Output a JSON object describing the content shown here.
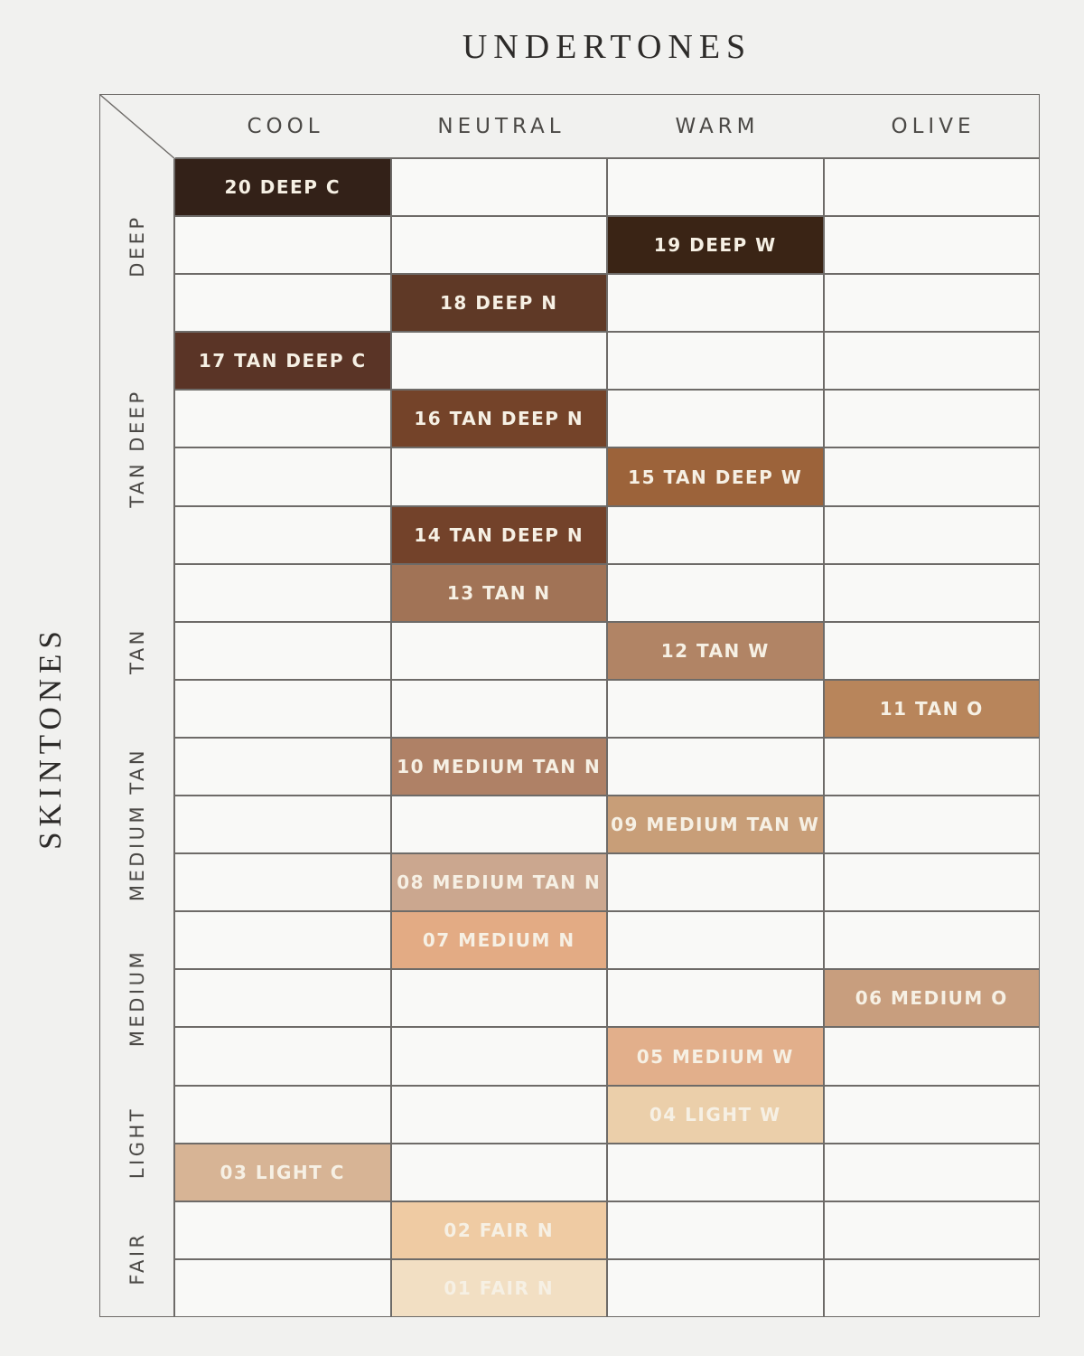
{
  "chart_data": {
    "type": "table",
    "title": "UNDERTONES",
    "row_axis_label": "SKINTONES",
    "columns": [
      "COOL",
      "NEUTRAL",
      "WARM",
      "OLIVE"
    ],
    "row_groups": [
      {
        "label": "DEEP",
        "rows": 3
      },
      {
        "label": "TAN DEEP",
        "rows": 4
      },
      {
        "label": "TAN",
        "rows": 3
      },
      {
        "label": "MEDIUM TAN",
        "rows": 3
      },
      {
        "label": "MEDIUM",
        "rows": 3
      },
      {
        "label": "LIGHT",
        "rows": 2
      },
      {
        "label": "FAIR",
        "rows": 2
      }
    ],
    "cells": [
      {
        "row": 1,
        "column": "COOL",
        "label": "20 DEEP C",
        "color": "#332118"
      },
      {
        "row": 2,
        "column": "WARM",
        "label": "19 DEEP W",
        "color": "#3A2415"
      },
      {
        "row": 3,
        "column": "NEUTRAL",
        "label": "18 DEEP N",
        "color": "#5F3926"
      },
      {
        "row": 4,
        "column": "COOL",
        "label": "17 TAN DEEP C",
        "color": "#5A3426"
      },
      {
        "row": 5,
        "column": "NEUTRAL",
        "label": "16 TAN DEEP N",
        "color": "#744329"
      },
      {
        "row": 6,
        "column": "WARM",
        "label": "15 TAN DEEP W",
        "color": "#9C633A"
      },
      {
        "row": 7,
        "column": "NEUTRAL",
        "label": "14 TAN DEEP N",
        "color": "#73422A"
      },
      {
        "row": 8,
        "column": "NEUTRAL",
        "label": "13 TAN N",
        "color": "#A17356"
      },
      {
        "row": 9,
        "column": "WARM",
        "label": "12 TAN W",
        "color": "#B18465"
      },
      {
        "row": 10,
        "column": "OLIVE",
        "label": "11 TAN O",
        "color": "#B8855B"
      },
      {
        "row": 11,
        "column": "NEUTRAL",
        "label": "10 MEDIUM TAN N",
        "color": "#AF8166"
      },
      {
        "row": 12,
        "column": "WARM",
        "label": "09 MEDIUM TAN W",
        "color": "#C89E78"
      },
      {
        "row": 13,
        "column": "NEUTRAL",
        "label": "08 MEDIUM TAN N",
        "color": "#CBA78F"
      },
      {
        "row": 14,
        "column": "NEUTRAL",
        "label": "07 MEDIUM N",
        "color": "#E3AB84"
      },
      {
        "row": 15,
        "column": "OLIVE",
        "label": "06 MEDIUM O",
        "color": "#C89E7E"
      },
      {
        "row": 16,
        "column": "WARM",
        "label": "05 MEDIUM W",
        "color": "#E2AF8B"
      },
      {
        "row": 17,
        "column": "WARM",
        "label": "04 LIGHT W",
        "color": "#EBCFAA"
      },
      {
        "row": 18,
        "column": "COOL",
        "label": "03 LIGHT C",
        "color": "#D7B495"
      },
      {
        "row": 19,
        "column": "NEUTRAL",
        "label": "02 FAIR N",
        "color": "#EFCBA3"
      },
      {
        "row": 20,
        "column": "NEUTRAL",
        "label": "01 FAIR N",
        "color": "#F2DFC3"
      }
    ],
    "colors": {
      "page_bg": "#F1F1EF",
      "grid_line": "#6e6b68",
      "empty_cell_bg": "#F9F9F7",
      "cell_text": "#F6F0E4",
      "heading_text": "#4b4946",
      "title_text": "#2d2b29"
    }
  }
}
